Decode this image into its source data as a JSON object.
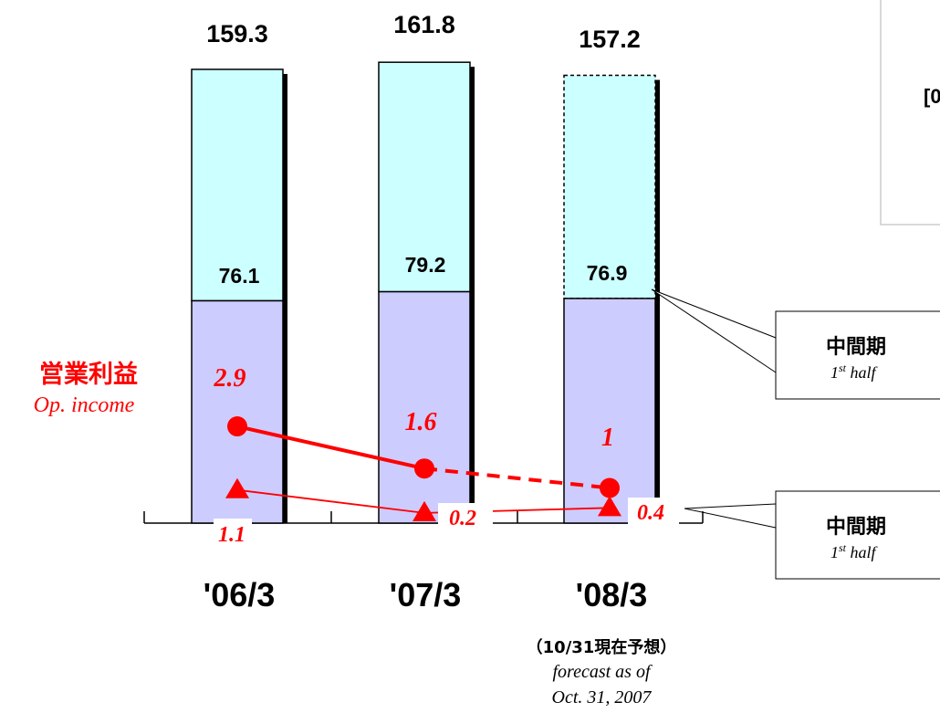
{
  "chart_data": {
    "type": "bar",
    "categories": [
      "'06/3",
      "'07/3",
      "'08/3"
    ],
    "series": [
      {
        "type": "bar",
        "values": [
          159.3,
          161.8,
          157.2
        ]
      },
      {
        "type": "bar",
        "values": [
          76.1,
          79.2,
          76.9
        ]
      },
      {
        "name": "営業利益",
        "name_en": "Op. income",
        "type": "line",
        "values": [
          2.9,
          1.6,
          1.0
        ]
      },
      {
        "type": "line",
        "values": [
          1.1,
          0.2,
          0.4
        ]
      }
    ],
    "forecast_note": [
      "（10/31現在予想）",
      "forecast as of",
      "Oct. 31, 2007"
    ],
    "callouts": [
      {
        "title": "中間期",
        "sub": "1",
        "sup": "st",
        "tail": " half"
      },
      {
        "title": "中間期",
        "sub": "1",
        "sup": "st",
        "tail": " half"
      }
    ],
    "partial_box_text": "[0"
  },
  "colors": {
    "upper_bar": "#ccffff",
    "lower_bar": "#ccccff",
    "line": "#ff0000"
  }
}
